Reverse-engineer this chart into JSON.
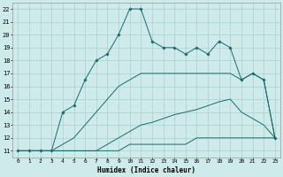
{
  "xlabel": "Humidex (Indice chaleur)",
  "bg_color": "#ceeaea",
  "grid_color": "#aad0d0",
  "line_color": "#1a6b6b",
  "xlim": [
    -0.5,
    23.5
  ],
  "ylim": [
    10.5,
    22.5
  ],
  "xticks": [
    0,
    1,
    2,
    3,
    4,
    5,
    6,
    7,
    8,
    9,
    10,
    11,
    12,
    13,
    14,
    15,
    16,
    17,
    18,
    19,
    20,
    21,
    22,
    23
  ],
  "yticks": [
    11,
    12,
    13,
    14,
    15,
    16,
    17,
    18,
    19,
    20,
    21,
    22
  ],
  "line1_x": [
    0,
    1,
    2,
    3,
    4,
    5,
    6,
    7,
    8,
    9,
    10,
    11,
    12,
    13,
    14,
    15,
    16,
    17,
    18,
    19,
    20,
    21,
    22,
    23
  ],
  "line1_y": [
    11,
    11,
    11,
    11,
    11,
    11,
    11,
    11,
    11,
    11,
    11.5,
    11.5,
    11.5,
    11.5,
    11.5,
    11.5,
    12,
    12,
    12,
    12,
    12,
    12,
    12,
    12
  ],
  "line2_x": [
    0,
    1,
    2,
    3,
    4,
    5,
    6,
    7,
    8,
    9,
    10,
    11,
    12,
    13,
    14,
    15,
    16,
    17,
    18,
    19,
    20,
    21,
    22,
    23
  ],
  "line2_y": [
    11,
    11,
    11,
    11,
    11,
    11,
    11,
    11,
    11.5,
    12,
    12.5,
    13,
    13.2,
    13.5,
    13.8,
    14,
    14.2,
    14.5,
    14.8,
    15,
    14,
    13.5,
    13,
    12
  ],
  "line3_x": [
    0,
    1,
    2,
    3,
    4,
    5,
    6,
    7,
    8,
    9,
    10,
    11,
    12,
    13,
    14,
    15,
    16,
    17,
    18,
    19,
    20,
    21,
    22,
    23
  ],
  "line3_y": [
    11,
    11,
    11,
    11,
    11.5,
    12,
    13,
    14,
    15,
    16,
    16.5,
    17,
    17,
    17,
    17,
    17,
    17,
    17,
    17,
    17,
    16.5,
    17,
    16.5,
    12
  ],
  "line4_x": [
    0,
    1,
    2,
    3,
    4,
    5,
    6,
    7,
    8,
    9,
    10,
    11,
    12,
    13,
    14,
    15,
    16,
    17,
    18,
    19,
    20,
    21,
    22,
    23
  ],
  "line4_y": [
    11,
    11,
    11,
    11,
    14,
    14.5,
    16.5,
    18,
    18.5,
    20,
    22,
    22,
    19.5,
    19,
    19,
    18.5,
    19,
    18.5,
    19.5,
    19,
    16.5,
    17,
    16.5,
    12
  ]
}
